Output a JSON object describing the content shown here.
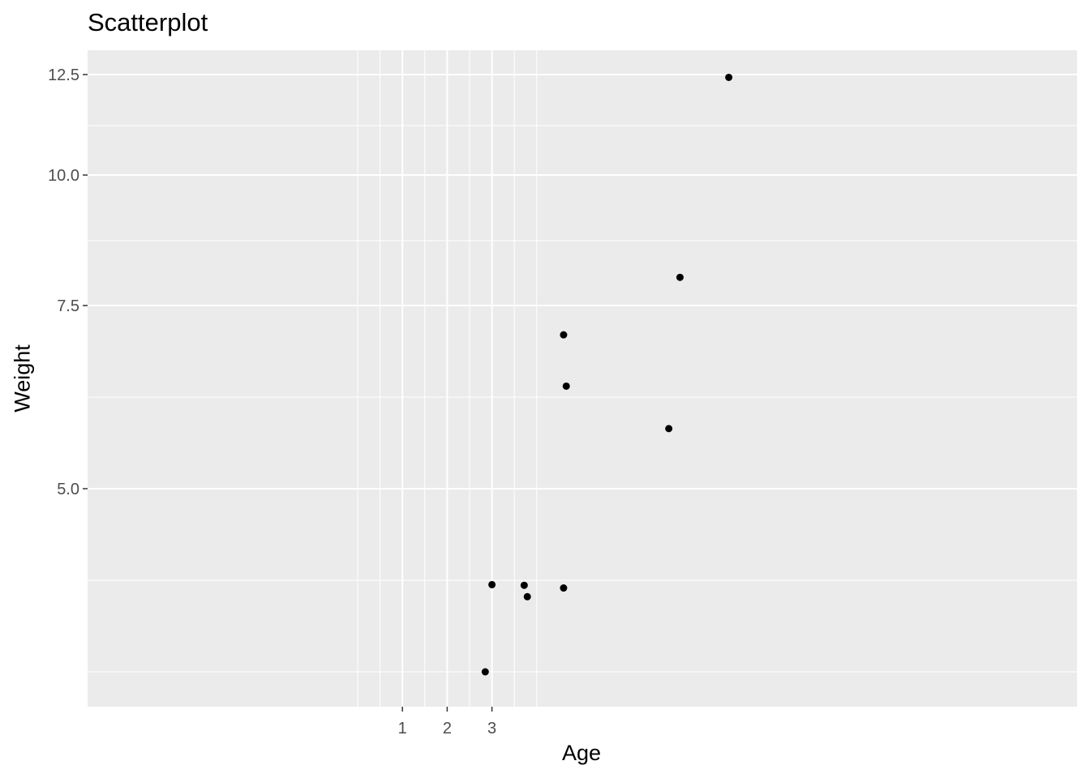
{
  "chart_data": {
    "type": "scatter",
    "title": "Scatterplot",
    "xlabel": "Age",
    "ylabel": "Weight",
    "x_ticks": [
      1,
      2,
      3
    ],
    "y_ticks": [
      5.0,
      7.5,
      10.0,
      12.5
    ],
    "y_tick_labels": [
      "5.0",
      "7.5",
      "10.0",
      "12.5"
    ],
    "points": [
      {
        "x": 2.85,
        "y": 2.27
      },
      {
        "x": 3.0,
        "y": 3.57
      },
      {
        "x": 3.72,
        "y": 3.56
      },
      {
        "x": 3.79,
        "y": 3.39
      },
      {
        "x": 4.6,
        "y": 3.52
      },
      {
        "x": 4.6,
        "y": 7.1
      },
      {
        "x": 4.66,
        "y": 6.4
      },
      {
        "x": 6.95,
        "y": 5.82
      },
      {
        "x": 7.2,
        "y": 8.04
      },
      {
        "x": 8.29,
        "y": 12.43
      }
    ],
    "panel_background": "#ebebeb",
    "grid_color": "#ffffff",
    "point_color": "#000000"
  }
}
